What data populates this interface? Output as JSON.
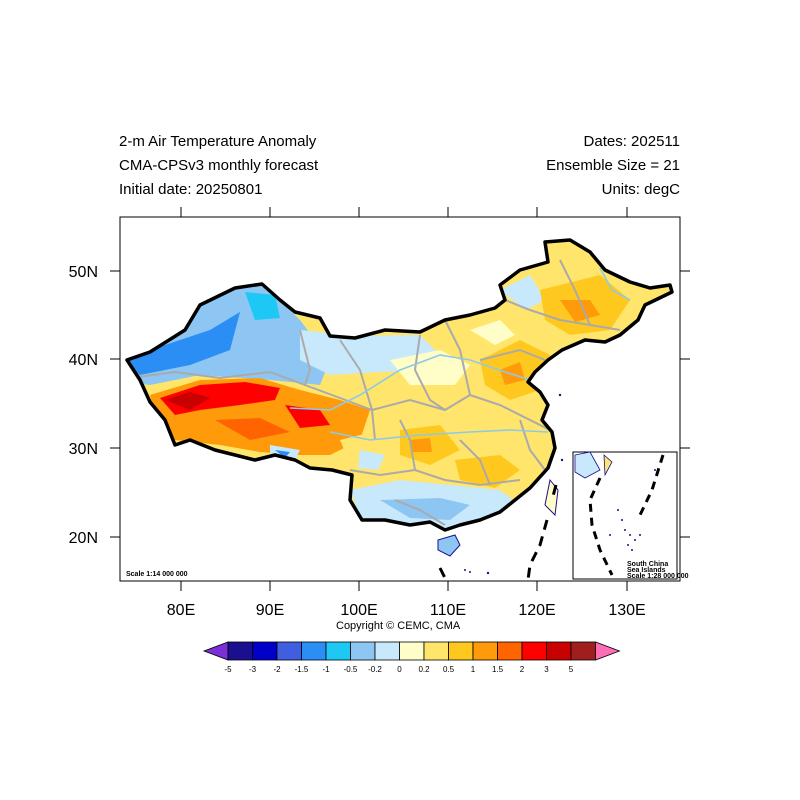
{
  "header": {
    "left": [
      "2-m Air Temperature Anomaly",
      "CMA-CPSv3 monthly forecast",
      "Initial date: 20250801"
    ],
    "right": [
      "Dates: 202511",
      "Ensemble Size = 21",
      "Units: degC"
    ]
  },
  "axes": {
    "x_ticks": [
      "80E",
      "90E",
      "100E",
      "110E",
      "120E",
      "130E"
    ],
    "y_ticks": [
      "50N",
      "40N",
      "30N",
      "20N"
    ]
  },
  "scale_main": "Scale 1:14 000 000",
  "inset": {
    "line1": "South China",
    "line2": "Sea Islands",
    "scale": "Scale 1:28 000 000"
  },
  "copyright": "Copyright © CEMC, CMA",
  "colorbar": {
    "labels": [
      "-5",
      "-3",
      "-2",
      "-1.5",
      "-1",
      "-0.5",
      "-0.2",
      "0",
      "0.2",
      "0.5",
      "1",
      "1.5",
      "2",
      "3",
      "5"
    ],
    "colors": [
      "#7b2fd6",
      "#1a0f8f",
      "#0000c8",
      "#3f5fe0",
      "#2b8ef5",
      "#1ec8f5",
      "#8dc6f2",
      "#c8e9fb",
      "#fffec8",
      "#ffe56b",
      "#ffc81e",
      "#ff9a0a",
      "#ff6400",
      "#ff0000",
      "#c80000",
      "#a01e1e",
      "#ff6eb4"
    ]
  }
}
